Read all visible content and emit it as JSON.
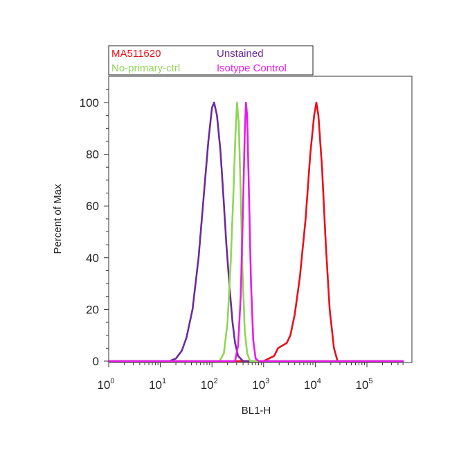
{
  "chart_data": {
    "type": "line",
    "title": "",
    "xlabel": "BL1-H",
    "ylabel": "Percent of Max",
    "xscale": "log",
    "xlim": [
      1,
      500000
    ],
    "ylim": [
      0,
      110
    ],
    "grid": false,
    "legend": {
      "placement": "top-left",
      "columns": 2
    },
    "x_ticks": [
      {
        "base": "10",
        "exp": "0",
        "value": 1
      },
      {
        "base": "10",
        "exp": "1",
        "value": 10
      },
      {
        "base": "10",
        "exp": "2",
        "value": 100
      },
      {
        "base": "10",
        "exp": "3",
        "value": 1000
      },
      {
        "base": "10",
        "exp": "4",
        "value": 10000
      },
      {
        "base": "10",
        "exp": "5",
        "value": 100000
      }
    ],
    "y_ticks": [
      "0",
      "20",
      "40",
      "60",
      "80",
      "100"
    ],
    "series": [
      {
        "name": "MA511620",
        "color": "#e8101a",
        "points": [
          [
            1,
            0
          ],
          [
            100,
            0
          ],
          [
            1000,
            0
          ],
          [
            1600,
            2
          ],
          [
            1900,
            5
          ],
          [
            2300,
            6
          ],
          [
            2800,
            7
          ],
          [
            3300,
            10
          ],
          [
            4000,
            18
          ],
          [
            5000,
            32
          ],
          [
            6500,
            55
          ],
          [
            8000,
            80
          ],
          [
            9500,
            95
          ],
          [
            10500,
            100
          ],
          [
            11500,
            95
          ],
          [
            13500,
            75
          ],
          [
            16000,
            45
          ],
          [
            19000,
            20
          ],
          [
            23000,
            5
          ],
          [
            27000,
            0
          ],
          [
            100000,
            0
          ],
          [
            500000,
            0
          ]
        ]
      },
      {
        "name": "Unstained",
        "color": "#6a2b9a",
        "points": [
          [
            1,
            0
          ],
          [
            15,
            0
          ],
          [
            20,
            1
          ],
          [
            26,
            4
          ],
          [
            32,
            9
          ],
          [
            42,
            20
          ],
          [
            55,
            40
          ],
          [
            70,
            65
          ],
          [
            85,
            85
          ],
          [
            100,
            98
          ],
          [
            110,
            100
          ],
          [
            125,
            95
          ],
          [
            145,
            82
          ],
          [
            165,
            65
          ],
          [
            190,
            45
          ],
          [
            220,
            28
          ],
          [
            250,
            15
          ],
          [
            280,
            7
          ],
          [
            320,
            2
          ],
          [
            400,
            0
          ],
          [
            100000,
            0
          ],
          [
            500000,
            0
          ]
        ]
      },
      {
        "name": "No-primary-ctrl",
        "color": "#8fd656",
        "points": [
          [
            1,
            0
          ],
          [
            140,
            0
          ],
          [
            170,
            3
          ],
          [
            200,
            15
          ],
          [
            230,
            38
          ],
          [
            260,
            65
          ],
          [
            285,
            88
          ],
          [
            305,
            100
          ],
          [
            330,
            92
          ],
          [
            360,
            65
          ],
          [
            390,
            35
          ],
          [
            430,
            12
          ],
          [
            480,
            3
          ],
          [
            550,
            0
          ],
          [
            500000,
            0
          ]
        ]
      },
      {
        "name": "Isotype Control",
        "color": "#e81ce8",
        "points": [
          [
            1,
            0
          ],
          [
            280,
            0
          ],
          [
            320,
            6
          ],
          [
            360,
            25
          ],
          [
            400,
            60
          ],
          [
            430,
            88
          ],
          [
            455,
            100
          ],
          [
            480,
            95
          ],
          [
            520,
            65
          ],
          [
            570,
            30
          ],
          [
            630,
            8
          ],
          [
            700,
            1
          ],
          [
            800,
            0
          ],
          [
            500000,
            0
          ]
        ]
      }
    ]
  }
}
